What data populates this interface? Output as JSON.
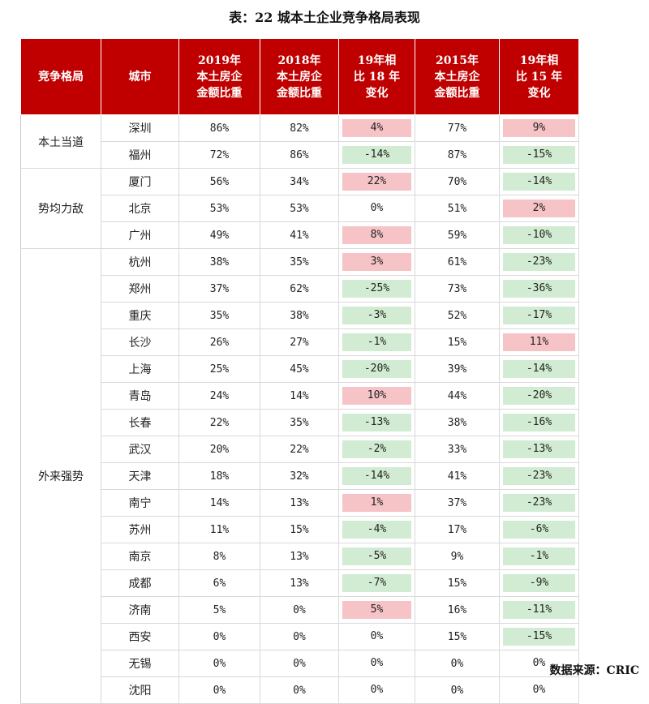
{
  "title": "表：22 城本土企业竞争格局表现",
  "headers": [
    [
      "竞争格局"
    ],
    [
      "城市"
    ],
    [
      "2019年",
      "本土房企",
      "金额比重"
    ],
    [
      "2018年",
      "本土房企",
      "金额比重"
    ],
    [
      "19年相",
      "比 18 年",
      "变化"
    ],
    [
      "2015年",
      "本土房企",
      "金额比重"
    ],
    [
      "19年相",
      "比 15 年",
      "变化"
    ]
  ],
  "groups": [
    {
      "category": "本土当道",
      "rows": [
        {
          "city": "深圳",
          "v2019": "86%",
          "v2018": "82%",
          "chg18": "4%",
          "chg18_sign": "pos",
          "v2015": "77%",
          "chg15": "9%",
          "chg15_sign": "pos"
        },
        {
          "city": "福州",
          "v2019": "72%",
          "v2018": "86%",
          "chg18": "-14%",
          "chg18_sign": "neg",
          "v2015": "87%",
          "chg15": "-15%",
          "chg15_sign": "neg"
        }
      ]
    },
    {
      "category": "势均力敌",
      "rows": [
        {
          "city": "厦门",
          "v2019": "56%",
          "v2018": "34%",
          "chg18": "22%",
          "chg18_sign": "pos",
          "v2015": "70%",
          "chg15": "-14%",
          "chg15_sign": "neg"
        },
        {
          "city": "北京",
          "v2019": "53%",
          "v2018": "53%",
          "chg18": "0%",
          "chg18_sign": "zero",
          "v2015": "51%",
          "chg15": "2%",
          "chg15_sign": "pos"
        },
        {
          "city": "广州",
          "v2019": "49%",
          "v2018": "41%",
          "chg18": "8%",
          "chg18_sign": "pos",
          "v2015": "59%",
          "chg15": "-10%",
          "chg15_sign": "neg"
        }
      ]
    },
    {
      "category": "外来强势",
      "rows": [
        {
          "city": "杭州",
          "v2019": "38%",
          "v2018": "35%",
          "chg18": "3%",
          "chg18_sign": "pos",
          "v2015": "61%",
          "chg15": "-23%",
          "chg15_sign": "neg"
        },
        {
          "city": "郑州",
          "v2019": "37%",
          "v2018": "62%",
          "chg18": "-25%",
          "chg18_sign": "neg",
          "v2015": "73%",
          "chg15": "-36%",
          "chg15_sign": "neg"
        },
        {
          "city": "重庆",
          "v2019": "35%",
          "v2018": "38%",
          "chg18": "-3%",
          "chg18_sign": "neg",
          "v2015": "52%",
          "chg15": "-17%",
          "chg15_sign": "neg"
        },
        {
          "city": "长沙",
          "v2019": "26%",
          "v2018": "27%",
          "chg18": "-1%",
          "chg18_sign": "neg",
          "v2015": "15%",
          "chg15": "11%",
          "chg15_sign": "pos"
        },
        {
          "city": "上海",
          "v2019": "25%",
          "v2018": "45%",
          "chg18": "-20%",
          "chg18_sign": "neg",
          "v2015": "39%",
          "chg15": "-14%",
          "chg15_sign": "neg"
        },
        {
          "city": "青岛",
          "v2019": "24%",
          "v2018": "14%",
          "chg18": "10%",
          "chg18_sign": "pos",
          "v2015": "44%",
          "chg15": "-20%",
          "chg15_sign": "neg"
        },
        {
          "city": "长春",
          "v2019": "22%",
          "v2018": "35%",
          "chg18": "-13%",
          "chg18_sign": "neg",
          "v2015": "38%",
          "chg15": "-16%",
          "chg15_sign": "neg"
        },
        {
          "city": "武汉",
          "v2019": "20%",
          "v2018": "22%",
          "chg18": "-2%",
          "chg18_sign": "neg",
          "v2015": "33%",
          "chg15": "-13%",
          "chg15_sign": "neg"
        },
        {
          "city": "天津",
          "v2019": "18%",
          "v2018": "32%",
          "chg18": "-14%",
          "chg18_sign": "neg",
          "v2015": "41%",
          "chg15": "-23%",
          "chg15_sign": "neg"
        },
        {
          "city": "南宁",
          "v2019": "14%",
          "v2018": "13%",
          "chg18": "1%",
          "chg18_sign": "pos",
          "v2015": "37%",
          "chg15": "-23%",
          "chg15_sign": "neg"
        },
        {
          "city": "苏州",
          "v2019": "11%",
          "v2018": "15%",
          "chg18": "-4%",
          "chg18_sign": "neg",
          "v2015": "17%",
          "chg15": "-6%",
          "chg15_sign": "neg"
        },
        {
          "city": "南京",
          "v2019": "8%",
          "v2018": "13%",
          "chg18": "-5%",
          "chg18_sign": "neg",
          "v2015": "9%",
          "chg15": "-1%",
          "chg15_sign": "neg"
        },
        {
          "city": "成都",
          "v2019": "6%",
          "v2018": "13%",
          "chg18": "-7%",
          "chg18_sign": "neg",
          "v2015": "15%",
          "chg15": "-9%",
          "chg15_sign": "neg"
        },
        {
          "city": "济南",
          "v2019": "5%",
          "v2018": "0%",
          "chg18": "5%",
          "chg18_sign": "pos",
          "v2015": "16%",
          "chg15": "-11%",
          "chg15_sign": "neg"
        },
        {
          "city": "西安",
          "v2019": "0%",
          "v2018": "0%",
          "chg18": "0%",
          "chg18_sign": "zero",
          "v2015": "15%",
          "chg15": "-15%",
          "chg15_sign": "neg"
        },
        {
          "city": "无锡",
          "v2019": "0%",
          "v2018": "0%",
          "chg18": "0%",
          "chg18_sign": "zero",
          "v2015": "0%",
          "chg15": "0%",
          "chg15_sign": "zero"
        },
        {
          "city": "沈阳",
          "v2019": "0%",
          "v2018": "0%",
          "chg18": "0%",
          "chg18_sign": "zero",
          "v2015": "0%",
          "chg15": "0%",
          "chg15_sign": "zero"
        }
      ]
    }
  ],
  "source": "数据来源：CRIC",
  "colors": {
    "header_bg": "#c00000",
    "positive_fill": "#f6c3c7",
    "negative_fill": "#d1ecd2"
  }
}
